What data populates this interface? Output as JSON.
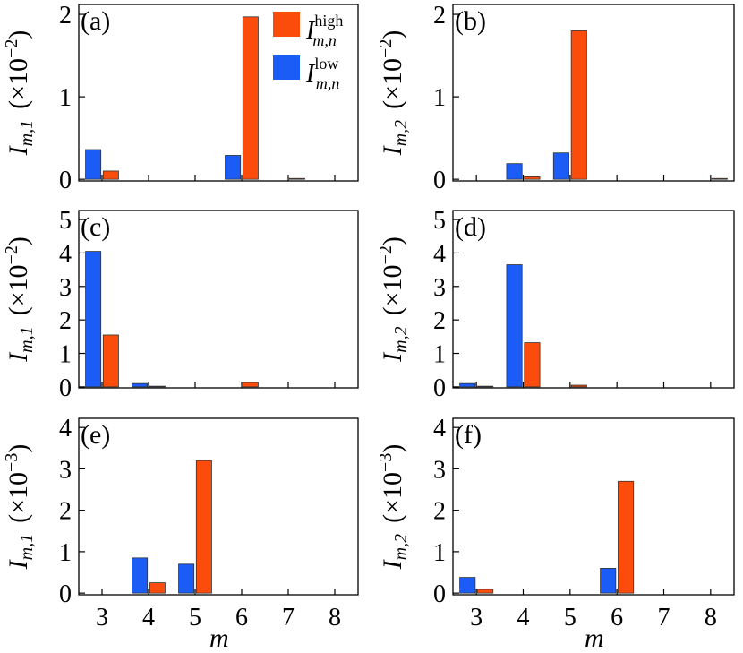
{
  "chart_data": [
    {
      "type": "bar",
      "panel_label": "(a)",
      "ylabel": {
        "main": "I",
        "sub": "m,1",
        "factor": "(×10",
        "exp": "−2",
        "close": ")"
      },
      "categories": [
        null,
        null,
        null,
        null,
        null,
        null
      ],
      "series": [
        {
          "name": "I",
          "name_sup": "high",
          "name_sub": "m,n",
          "color": "#fc4c0c",
          "values": [
            0.1,
            0,
            0,
            1.97,
            0.01,
            0
          ]
        },
        {
          "name": "I",
          "name_sup": "low",
          "name_sub": "m,n",
          "color": "#1a5cf5",
          "values": [
            0.36,
            0,
            0,
            0.29,
            0,
            0
          ]
        }
      ],
      "legend": "upper right",
      "ylim": [
        -0.02,
        2.12
      ],
      "yticks": [
        0,
        1,
        2
      ]
    },
    {
      "type": "bar",
      "panel_label": "(b)",
      "ylabel": {
        "main": "I",
        "sub": "m,2",
        "factor": "(×10",
        "exp": "−2",
        "close": ")"
      },
      "categories": [
        null,
        null,
        null,
        null,
        null,
        null
      ],
      "series": [
        {
          "color": "#fc4c0c",
          "values": [
            0,
            0.03,
            1.8,
            0,
            0,
            0.01
          ]
        },
        {
          "color": "#1a5cf5",
          "values": [
            0,
            0.19,
            0.32,
            0,
            0,
            0
          ]
        }
      ],
      "ylim": [
        -0.02,
        2.12
      ],
      "yticks": [
        0,
        1,
        2
      ]
    },
    {
      "type": "bar",
      "panel_label": "(c)",
      "ylabel": {
        "main": "I",
        "sub": "m,1",
        "factor": "(×10",
        "exp": "−2",
        "close": ")"
      },
      "categories": [
        null,
        null,
        null,
        null,
        null,
        null
      ],
      "series": [
        {
          "color": "#fc4c0c",
          "values": [
            1.55,
            0.02,
            0,
            0.13,
            0,
            0
          ]
        },
        {
          "color": "#1a5cf5",
          "values": [
            4.05,
            0.1,
            0,
            0,
            0,
            0
          ]
        }
      ],
      "ylim": [
        -0.03,
        5.27
      ],
      "yticks": [
        0,
        1,
        2,
        3,
        4,
        5
      ]
    },
    {
      "type": "bar",
      "panel_label": "(d)",
      "ylabel": {
        "main": "I",
        "sub": "m,2",
        "factor": "(×10",
        "exp": "−2",
        "close": ")"
      },
      "categories": [
        null,
        null,
        null,
        null,
        null,
        null
      ],
      "series": [
        {
          "color": "#fc4c0c",
          "values": [
            0.02,
            1.32,
            0.05,
            0,
            0,
            0
          ]
        },
        {
          "color": "#1a5cf5",
          "values": [
            0.1,
            3.65,
            0,
            0,
            0,
            0
          ]
        }
      ],
      "ylim": [
        -0.03,
        5.27
      ],
      "yticks": [
        0,
        1,
        2,
        3,
        4,
        5
      ]
    },
    {
      "type": "bar",
      "panel_label": "(e)",
      "xlabel": "m",
      "ylabel": {
        "main": "I",
        "sub": "m,1",
        "factor": "(×10",
        "exp": "−3",
        "close": ")"
      },
      "categories": [
        3,
        4,
        5,
        6,
        7,
        8
      ],
      "series": [
        {
          "color": "#fc4c0c",
          "values": [
            0,
            0.25,
            3.2,
            0,
            0,
            0
          ]
        },
        {
          "color": "#1a5cf5",
          "values": [
            0,
            0.85,
            0.7,
            0,
            0,
            0
          ]
        }
      ],
      "ylim": [
        -0.04,
        4.22
      ],
      "yticks": [
        0,
        1,
        2,
        3,
        4
      ]
    },
    {
      "type": "bar",
      "panel_label": "(f)",
      "xlabel": "m",
      "ylabel": {
        "main": "I",
        "sub": "m,2",
        "factor": "(×10",
        "exp": "−3",
        "close": ")"
      },
      "categories": [
        3,
        4,
        5,
        6,
        7,
        8
      ],
      "series": [
        {
          "color": "#fc4c0c",
          "values": [
            0.09,
            0,
            0,
            2.7,
            0,
            0
          ]
        },
        {
          "color": "#1a5cf5",
          "values": [
            0.38,
            0,
            0,
            0.6,
            0,
            0
          ]
        }
      ],
      "ylim": [
        -0.04,
        4.22
      ],
      "yticks": [
        0,
        1,
        2,
        3,
        4
      ]
    }
  ]
}
